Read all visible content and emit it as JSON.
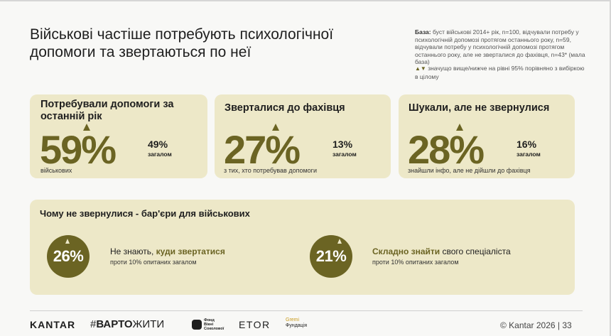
{
  "title": "Військові частіше потребують психологічної допомоги та звертаються по неї",
  "note": {
    "label": "База:",
    "text": "буст військові 2014+ рік, n=100, відчували потребу у психологічній допомозі протягом останнього року, n=59, відчували потребу у психологічній допомозі протягом останнього року, але не зверталися до фахівця, n=43* (мала база)"
  },
  "legend": {
    "text": "значущо вище/нижче на рівні 95% порівняно з вибіркою в цілому"
  },
  "cards": [
    {
      "title": "Потребували допомоги за останній рік",
      "value": "59%",
      "compare_value": "49%",
      "compare_label": "загалом",
      "sub": "військових"
    },
    {
      "title": "Зверталися до фахівця",
      "value": "27%",
      "compare_value": "13%",
      "compare_label": "загалом",
      "sub": "з тих, хто потребував допомоги"
    },
    {
      "title": "Шукали, але не звернулися",
      "value": "28%",
      "compare_value": "16%",
      "compare_label": "загалом",
      "sub": "знайшли інфо, але не дійшли до фахівця"
    }
  ],
  "barriers": {
    "title": "Чому не звернулися - бар'єри для військових",
    "items": [
      {
        "value": "26%",
        "text_before": "Не знають, ",
        "highlight": "куди звертатися",
        "text_after": "",
        "sub": "проти 10% опитаних загалом"
      },
      {
        "value": "21%",
        "text_before": "",
        "highlight": "Складно знайти",
        "text_after": " свого спеціаліста",
        "sub": "проти 10% опитаних загалом"
      }
    ]
  },
  "footer": {
    "kantar": "KANTAR",
    "vart_prefix": "#",
    "vart_bold": "ВАРТО",
    "vart_rest": "ЖИТИ",
    "vv_line1": "Фонд",
    "vv_line2": "Вікні",
    "vv_line3": "Соколової",
    "etor": "ETOR",
    "gremi_line1": "Gremi",
    "gremi_line2": "Фундація",
    "copyright": "© Kantar 2026 | 33"
  },
  "colors": {
    "accent": "#6b6423",
    "card_bg": "#ede8c8",
    "page_bg": "#f8f8f6"
  }
}
